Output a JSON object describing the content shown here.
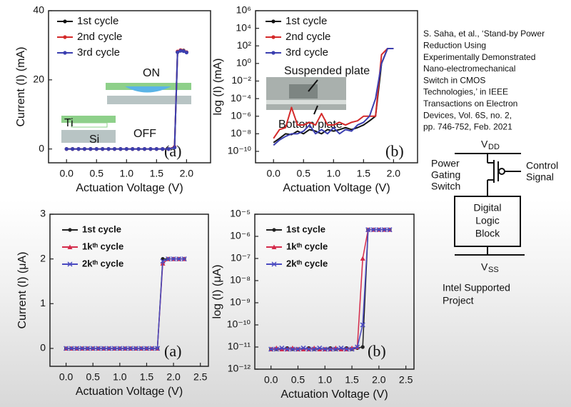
{
  "chart_data": [
    {
      "type": "line",
      "xlabel": "Actuation Voltage (V)",
      "ylabel": "Current (I) (mA)",
      "log_y": false,
      "xlim": [
        -0.3,
        2.4
      ],
      "ylim": [
        -4,
        40
      ],
      "xticks": [
        {
          "value": 0,
          "label": "0.0"
        },
        0.5,
        {
          "value": 1,
          "label": "1.0"
        },
        1.5,
        {
          "value": 2,
          "label": "2.0"
        }
      ],
      "yticks": [
        0,
        20,
        40
      ],
      "x": [
        0,
        0.1,
        0.2,
        0.3,
        0.4,
        0.5,
        0.6,
        0.7,
        0.8,
        0.9,
        1.0,
        1.1,
        1.2,
        1.3,
        1.4,
        1.5,
        1.6,
        1.7,
        1.8,
        1.85,
        1.9,
        1.95,
        2.0
      ],
      "series": [
        {
          "name": "1st cycle",
          "color": "#111111",
          "marker": "circle",
          "values": [
            0,
            0,
            0,
            0,
            0,
            0,
            0,
            0,
            0,
            0,
            0,
            0,
            0,
            0,
            0,
            0,
            0,
            0,
            0.5,
            28,
            28.5,
            28.5,
            28
          ]
        },
        {
          "name": "2nd cycle",
          "color": "#d42a2a",
          "marker": "circle",
          "values": [
            0,
            0,
            0,
            0,
            0,
            0,
            0,
            0,
            0,
            0,
            0,
            0,
            0,
            0,
            0,
            0,
            0,
            0,
            0.6,
            28.2,
            28.6,
            28.4,
            28
          ]
        },
        {
          "name": "3rd cycle",
          "color": "#3b3fb0",
          "marker": "circle",
          "values": [
            0,
            0,
            0,
            0,
            0,
            0,
            0,
            0,
            0,
            0,
            0,
            0,
            0,
            0,
            0,
            0,
            0,
            0,
            0.4,
            28,
            28.4,
            28.3,
            27.9
          ]
        }
      ],
      "annotations": [
        "(a)",
        "ON",
        "OFF",
        "Ti",
        "Si"
      ]
    },
    {
      "type": "line",
      "xlabel": "Actuation Voltage (V)",
      "ylabel": "log (I) (mA)",
      "log_y": true,
      "xlim": [
        -0.3,
        2.4
      ],
      "ylim": [
        5e-12,
        1000000.0
      ],
      "xticks": [
        {
          "value": 0,
          "label": "0.0"
        },
        0.5,
        {
          "value": 1,
          "label": "1.0"
        },
        1.5,
        {
          "value": 2,
          "label": "2.0"
        }
      ],
      "yticks": [
        {
          "value": 1e-10,
          "label": "10⁻¹⁰"
        },
        {
          "value": 1e-08,
          "label": "10⁻⁸"
        },
        {
          "value": 1e-06,
          "label": "10⁻⁶"
        },
        {
          "value": 0.0001,
          "label": "10⁻⁴"
        },
        {
          "value": 0.01,
          "label": "10⁻²"
        },
        {
          "value": 1,
          "label": "10⁰"
        },
        {
          "value": 100,
          "label": "10²"
        },
        {
          "value": 10000,
          "label": "10⁴"
        },
        {
          "value": 1000000,
          "label": "10⁶"
        }
      ],
      "x": [
        0,
        0.1,
        0.2,
        0.3,
        0.4,
        0.5,
        0.6,
        0.7,
        0.8,
        0.9,
        1.0,
        1.1,
        1.2,
        1.3,
        1.4,
        1.5,
        1.6,
        1.7,
        1.8,
        1.9,
        2.0
      ],
      "series": [
        {
          "name": "1st cycle",
          "color": "#111111",
          "marker": "none",
          "values": [
            1e-09,
            3e-09,
            1e-08,
            8e-09,
            2e-08,
            1e-08,
            3e-08,
            2e-08,
            1e-08,
            3e-08,
            2e-08,
            3e-08,
            5e-08,
            3e-08,
            5e-08,
            1e-07,
            3e-07,
            1e-06,
            1,
            50,
            50
          ]
        },
        {
          "name": "2nd cycle",
          "color": "#d42a2a",
          "marker": "none",
          "values": [
            3e-09,
            3e-08,
            5e-08,
            1e-05,
            1e-07,
            1e-07,
            2e-07,
            1e-07,
            2e-06,
            1e-07,
            1e-07,
            2e-07,
            1e-07,
            2e-07,
            3e-07,
            1e-06,
            1e-06,
            1e-06,
            10,
            50,
            50
          ]
        },
        {
          "name": "3rd cycle",
          "color": "#3b3fb0",
          "marker": "none",
          "values": [
            5e-10,
            2e-09,
            5e-09,
            1e-08,
            1e-08,
            2e-08,
            1e-07,
            1e-08,
            3e-08,
            1e-08,
            5e-08,
            1e-08,
            3e-08,
            2e-08,
            1e-07,
            2e-07,
            1e-06,
            0.0001,
            1,
            50,
            50
          ]
        }
      ],
      "annotations": [
        "(b)",
        "Suspended plate",
        "Bottom plate"
      ]
    },
    {
      "type": "line",
      "xlabel": "Actuation Voltage (V)",
      "ylabel": "Current (I) (μA)",
      "log_y": false,
      "xlim": [
        -0.3,
        2.65
      ],
      "ylim": [
        -0.4,
        3
      ],
      "xticks": [
        {
          "value": 0,
          "label": "0.0"
        },
        0.5,
        {
          "value": 1,
          "label": "1.0"
        },
        1.5,
        {
          "value": 2,
          "label": "2.0"
        },
        2.5
      ],
      "yticks": [
        0,
        1,
        2,
        3
      ],
      "x": [
        0,
        0.1,
        0.2,
        0.3,
        0.4,
        0.5,
        0.6,
        0.7,
        0.8,
        0.9,
        1.0,
        1.1,
        1.2,
        1.3,
        1.4,
        1.5,
        1.6,
        1.7,
        1.8,
        1.9,
        2.0,
        2.1,
        2.2
      ],
      "series": [
        {
          "name": "1st cycle",
          "color": "#222222",
          "marker": "circle",
          "values": [
            0,
            0,
            0,
            0,
            0,
            0,
            0,
            0,
            0,
            0,
            0,
            0,
            0,
            0,
            0,
            0,
            0,
            0,
            2,
            2,
            2,
            2,
            2
          ]
        },
        {
          "name": "1kᵗʰ cycle",
          "color": "#d42a4a",
          "marker": "triangle",
          "values": [
            0,
            0,
            0,
            0,
            0,
            0,
            0,
            0,
            0,
            0,
            0,
            0,
            0,
            0,
            0,
            0,
            0,
            0,
            1.9,
            2,
            2,
            2,
            2
          ]
        },
        {
          "name": "2kᵗʰ cycle",
          "color": "#4a4ac0",
          "marker": "x",
          "values": [
            0,
            0,
            0,
            0,
            0,
            0,
            0,
            0,
            0,
            0,
            0,
            0,
            0,
            0,
            0,
            0,
            0,
            0,
            1.95,
            2,
            2,
            2,
            2
          ]
        }
      ],
      "annotations": [
        "(a)"
      ]
    },
    {
      "type": "line",
      "xlabel": "Actuation Voltage (V)",
      "ylabel": "log (I) (μA)",
      "log_y": true,
      "xlim": [
        -0.3,
        2.65
      ],
      "ylim": [
        1e-12,
        1e-05
      ],
      "xticks": [
        {
          "value": 0,
          "label": "0.0"
        },
        0.5,
        {
          "value": 1,
          "label": "1.0"
        },
        1.5,
        {
          "value": 2,
          "label": "2.0"
        },
        2.5
      ],
      "yticks": [
        {
          "value": 1e-12,
          "label": "10⁻¹²"
        },
        {
          "value": 1e-11,
          "label": "10⁻¹¹"
        },
        {
          "value": 1e-10,
          "label": "10⁻¹⁰"
        },
        {
          "value": 1e-09,
          "label": "10⁻⁹"
        },
        {
          "value": 1e-08,
          "label": "10⁻⁸"
        },
        {
          "value": 1e-07,
          "label": "10⁻⁷"
        },
        {
          "value": 1e-06,
          "label": "10⁻⁶"
        },
        {
          "value": 1e-05,
          "label": "10⁻⁵"
        }
      ],
      "x": [
        0,
        0.1,
        0.2,
        0.3,
        0.4,
        0.5,
        0.6,
        0.7,
        0.8,
        0.9,
        1.0,
        1.1,
        1.2,
        1.3,
        1.4,
        1.5,
        1.6,
        1.7,
        1.8,
        1.9,
        2.0,
        2.1,
        2.2
      ],
      "series": [
        {
          "name": "1st cycle",
          "color": "#222222",
          "marker": "circle",
          "values": [
            8e-12,
            8e-12,
            8e-12,
            9e-12,
            8e-12,
            8e-12,
            8e-12,
            9e-12,
            8e-12,
            8e-12,
            8e-12,
            9e-12,
            8e-12,
            8e-12,
            9e-12,
            8e-12,
            9e-12,
            1e-11,
            2e-06,
            2e-06,
            2e-06,
            2e-06,
            2e-06
          ]
        },
        {
          "name": "1kᵗʰ cycle",
          "color": "#d42a4a",
          "marker": "triangle",
          "values": [
            8e-12,
            9e-12,
            8e-12,
            8e-12,
            9e-12,
            8e-12,
            8e-12,
            8e-12,
            9e-12,
            8e-12,
            8e-12,
            8e-12,
            9e-12,
            8e-12,
            8e-12,
            9e-12,
            1e-11,
            1e-07,
            2e-06,
            2e-06,
            2e-06,
            2e-06,
            2e-06
          ]
        },
        {
          "name": "2kᵗʰ cycle",
          "color": "#4a4ac0",
          "marker": "x",
          "values": [
            8e-12,
            8e-12,
            9e-12,
            8e-12,
            8e-12,
            8e-12,
            9e-12,
            8e-12,
            8e-12,
            9e-12,
            8e-12,
            8e-12,
            8e-12,
            9e-12,
            8e-12,
            8e-12,
            1e-11,
            1e-10,
            2e-06,
            2e-06,
            2e-06,
            2e-06,
            2e-06
          ]
        }
      ],
      "annotations": [
        "(b)"
      ]
    }
  ],
  "citation": [
    "S. Saha, et al., ‘Stand-by Power",
    "Reduction Using",
    "Experimentally Demonstrated",
    "Nano-electromechanical",
    "Switch in CMOS",
    "Technologies,’ in IEEE",
    "Transactions on Electron",
    "Devices, Vol. 6S, no. 2,",
    "pp. 746-752, Feb. 2021"
  ],
  "diagram": {
    "vdd": {
      "symbol": "V",
      "subscript": "DD"
    },
    "vss": {
      "symbol": "V",
      "subscript": "SS"
    },
    "switch_label": [
      "Power",
      "Gating",
      "Switch"
    ],
    "control_label": [
      "Control",
      "Signal"
    ],
    "block_label": [
      "Digital",
      "Logic",
      "Block"
    ],
    "footer": [
      "Intel Supported",
      "Project"
    ]
  }
}
